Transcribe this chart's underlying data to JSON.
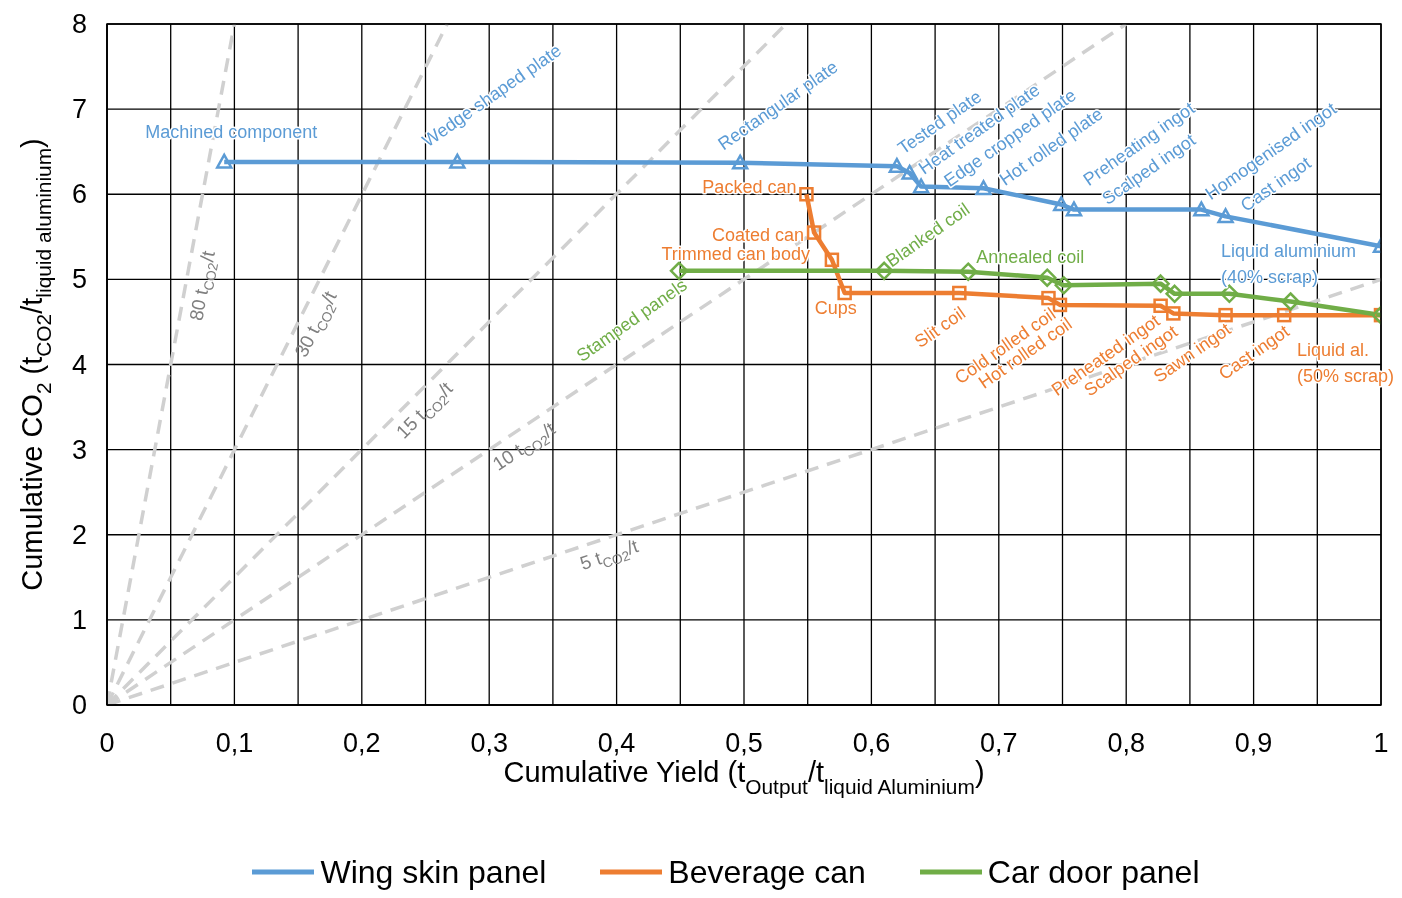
{
  "chart_data": {
    "type": "line",
    "xlabel": "Cumulative Yield (t$_{Output}$/t$_{liquid Aluminium}$)",
    "ylabel": "Cumulative CO$_{2}$ (t$_{CO2}$/t$_{liquid aluminium}$)",
    "xlim": [
      0,
      1
    ],
    "ylim": [
      0,
      8
    ],
    "xticks": [
      0,
      {
        "value": 0.05,
        "label": null
      },
      {
        "value": 0.1,
        "label": "0,1"
      },
      {
        "value": 0.15,
        "label": null
      },
      {
        "value": 0.2,
        "label": "0,2"
      },
      {
        "value": 0.25,
        "label": null
      },
      {
        "value": 0.3,
        "label": "0,3"
      },
      {
        "value": 0.35,
        "label": null
      },
      {
        "value": 0.4,
        "label": "0,4"
      },
      {
        "value": 0.45,
        "label": null
      },
      {
        "value": 0.5,
        "label": "0,5"
      },
      {
        "value": 0.55,
        "label": null
      },
      {
        "value": 0.6,
        "label": "0,6"
      },
      {
        "value": 0.65,
        "label": null
      },
      {
        "value": 0.7,
        "label": "0,7"
      },
      {
        "value": 0.75,
        "label": null
      },
      {
        "value": 0.8,
        "label": "0,8"
      },
      {
        "value": 0.85,
        "label": null
      },
      {
        "value": 0.9,
        "label": "0,9"
      },
      {
        "value": 0.95,
        "label": null
      },
      1
    ],
    "yticks": [
      0,
      1,
      2,
      3,
      4,
      5,
      6,
      7,
      8
    ],
    "grid": true,
    "legend": "bottom",
    "series": [
      {
        "name": "Wing skin panel",
        "color": "#5b9bd5",
        "type": "line",
        "marker": "triangle",
        "x": [
          0.092,
          0.275,
          0.497,
          0.62,
          0.63,
          0.639,
          0.688,
          0.749,
          0.759,
          0.859,
          0.878,
          1.0
        ],
        "values": [
          6.38,
          6.38,
          6.37,
          6.33,
          6.25,
          6.09,
          6.07,
          5.88,
          5.82,
          5.82,
          5.74,
          5.39
        ]
      },
      {
        "name": "Beverage can",
        "color": "#ed7d31",
        "type": "line",
        "marker": "square",
        "x": [
          0.549,
          0.555,
          0.569,
          0.579,
          0.669,
          0.739,
          0.748,
          0.827,
          0.837,
          0.878,
          0.924,
          1.0
        ],
        "values": [
          6.0,
          5.55,
          5.23,
          4.84,
          4.84,
          4.78,
          4.7,
          4.69,
          4.6,
          4.58,
          4.58,
          4.58
        ]
      },
      {
        "name": "Car door panel",
        "color": "#70ad47",
        "type": "line",
        "marker": "diamond",
        "x": [
          0.449,
          0.61,
          0.676,
          0.738,
          0.751,
          0.827,
          0.838,
          0.881,
          0.929,
          1.0
        ],
        "values": [
          5.1,
          5.1,
          5.09,
          5.02,
          4.93,
          4.95,
          4.83,
          4.83,
          4.74,
          4.58
        ]
      },
      {
        "name": "80 t$_{CO2}$/t",
        "color": "#d0d0d0",
        "type": "line",
        "marker": "none",
        "line_style": "dashed",
        "x": [
          0,
          0.1
        ],
        "values": [
          0,
          8
        ]
      },
      {
        "name": "30 t$_{CO2}$/t",
        "color": "#d0d0d0",
        "type": "line",
        "marker": "none",
        "line_style": "dashed",
        "x": [
          0,
          0.267
        ],
        "values": [
          0,
          8
        ]
      },
      {
        "name": "15 t$_{CO2}$/t",
        "color": "#d0d0d0",
        "type": "line",
        "marker": "none",
        "line_style": "dashed",
        "x": [
          0,
          0.533
        ],
        "values": [
          0,
          8
        ]
      },
      {
        "name": "10 t$_{CO2}$/t",
        "color": "#d0d0d0",
        "type": "line",
        "marker": "none",
        "line_style": "dashed",
        "x": [
          0,
          0.8
        ],
        "values": [
          0,
          8
        ]
      },
      {
        "name": "5 t$_{CO2}$/t",
        "color": "#d0d0d0",
        "type": "line",
        "marker": "none",
        "line_style": "dashed",
        "x": [
          0,
          1
        ],
        "values": [
          0,
          5
        ]
      }
    ],
    "annotations": [
      {
        "text": "Machined component",
        "x": 0.092,
        "y": 6.38
      },
      {
        "text": "Wedge shaped plate",
        "x": 0.275,
        "y": 6.38
      },
      {
        "text": "Rectangular plate",
        "x": 0.497,
        "y": 6.37
      },
      {
        "text": "Tested plate",
        "x": 0.62,
        "y": 6.33
      },
      {
        "text": "Heat treated plate",
        "x": 0.63,
        "y": 6.25
      },
      {
        "text": "Edge cropped plate",
        "x": 0.639,
        "y": 6.09
      },
      {
        "text": "Hot rolled plate",
        "x": 0.688,
        "y": 6.07
      },
      {
        "text": "Preheating ingot",
        "x": 0.749,
        "y": 5.88
      },
      {
        "text": "Scalped ingot",
        "x": 0.759,
        "y": 5.82
      },
      {
        "text": "Homogenised ingot",
        "x": 0.859,
        "y": 5.82
      },
      {
        "text": "Cast ingot",
        "x": 0.878,
        "y": 5.74
      },
      {
        "text": "Liquid aluminium\n(40% scrap)",
        "x": 1.0,
        "y": 5.39
      },
      {
        "text": "Packed can",
        "x": 0.549,
        "y": 6.0
      },
      {
        "text": "Coated can",
        "x": 0.555,
        "y": 5.55
      },
      {
        "text": "Trimmed can body",
        "x": 0.569,
        "y": 5.23
      },
      {
        "text": "Cups",
        "x": 0.579,
        "y": 4.84
      },
      {
        "text": "Slit coil",
        "x": 0.669,
        "y": 4.84
      },
      {
        "text": "Cold rolled coil",
        "x": 0.739,
        "y": 4.78
      },
      {
        "text": "Hot rolled coil",
        "x": 0.748,
        "y": 4.7
      },
      {
        "text": "Preheated ingot",
        "x": 0.827,
        "y": 4.69
      },
      {
        "text": "Scalped ingot",
        "x": 0.837,
        "y": 4.6
      },
      {
        "text": "Sawn ingot",
        "x": 0.878,
        "y": 4.58
      },
      {
        "text": "Cast ingot",
        "x": 0.924,
        "y": 4.58
      },
      {
        "text": "Liquid al.\n(50% scrap)",
        "x": 1.0,
        "y": 4.58
      },
      {
        "text": "Stamped panels",
        "x": 0.449,
        "y": 5.1
      },
      {
        "text": "Blanked coil",
        "x": 0.61,
        "y": 5.1
      },
      {
        "text": "Annealed coil",
        "x": 0.676,
        "y": 5.09
      }
    ]
  }
}
